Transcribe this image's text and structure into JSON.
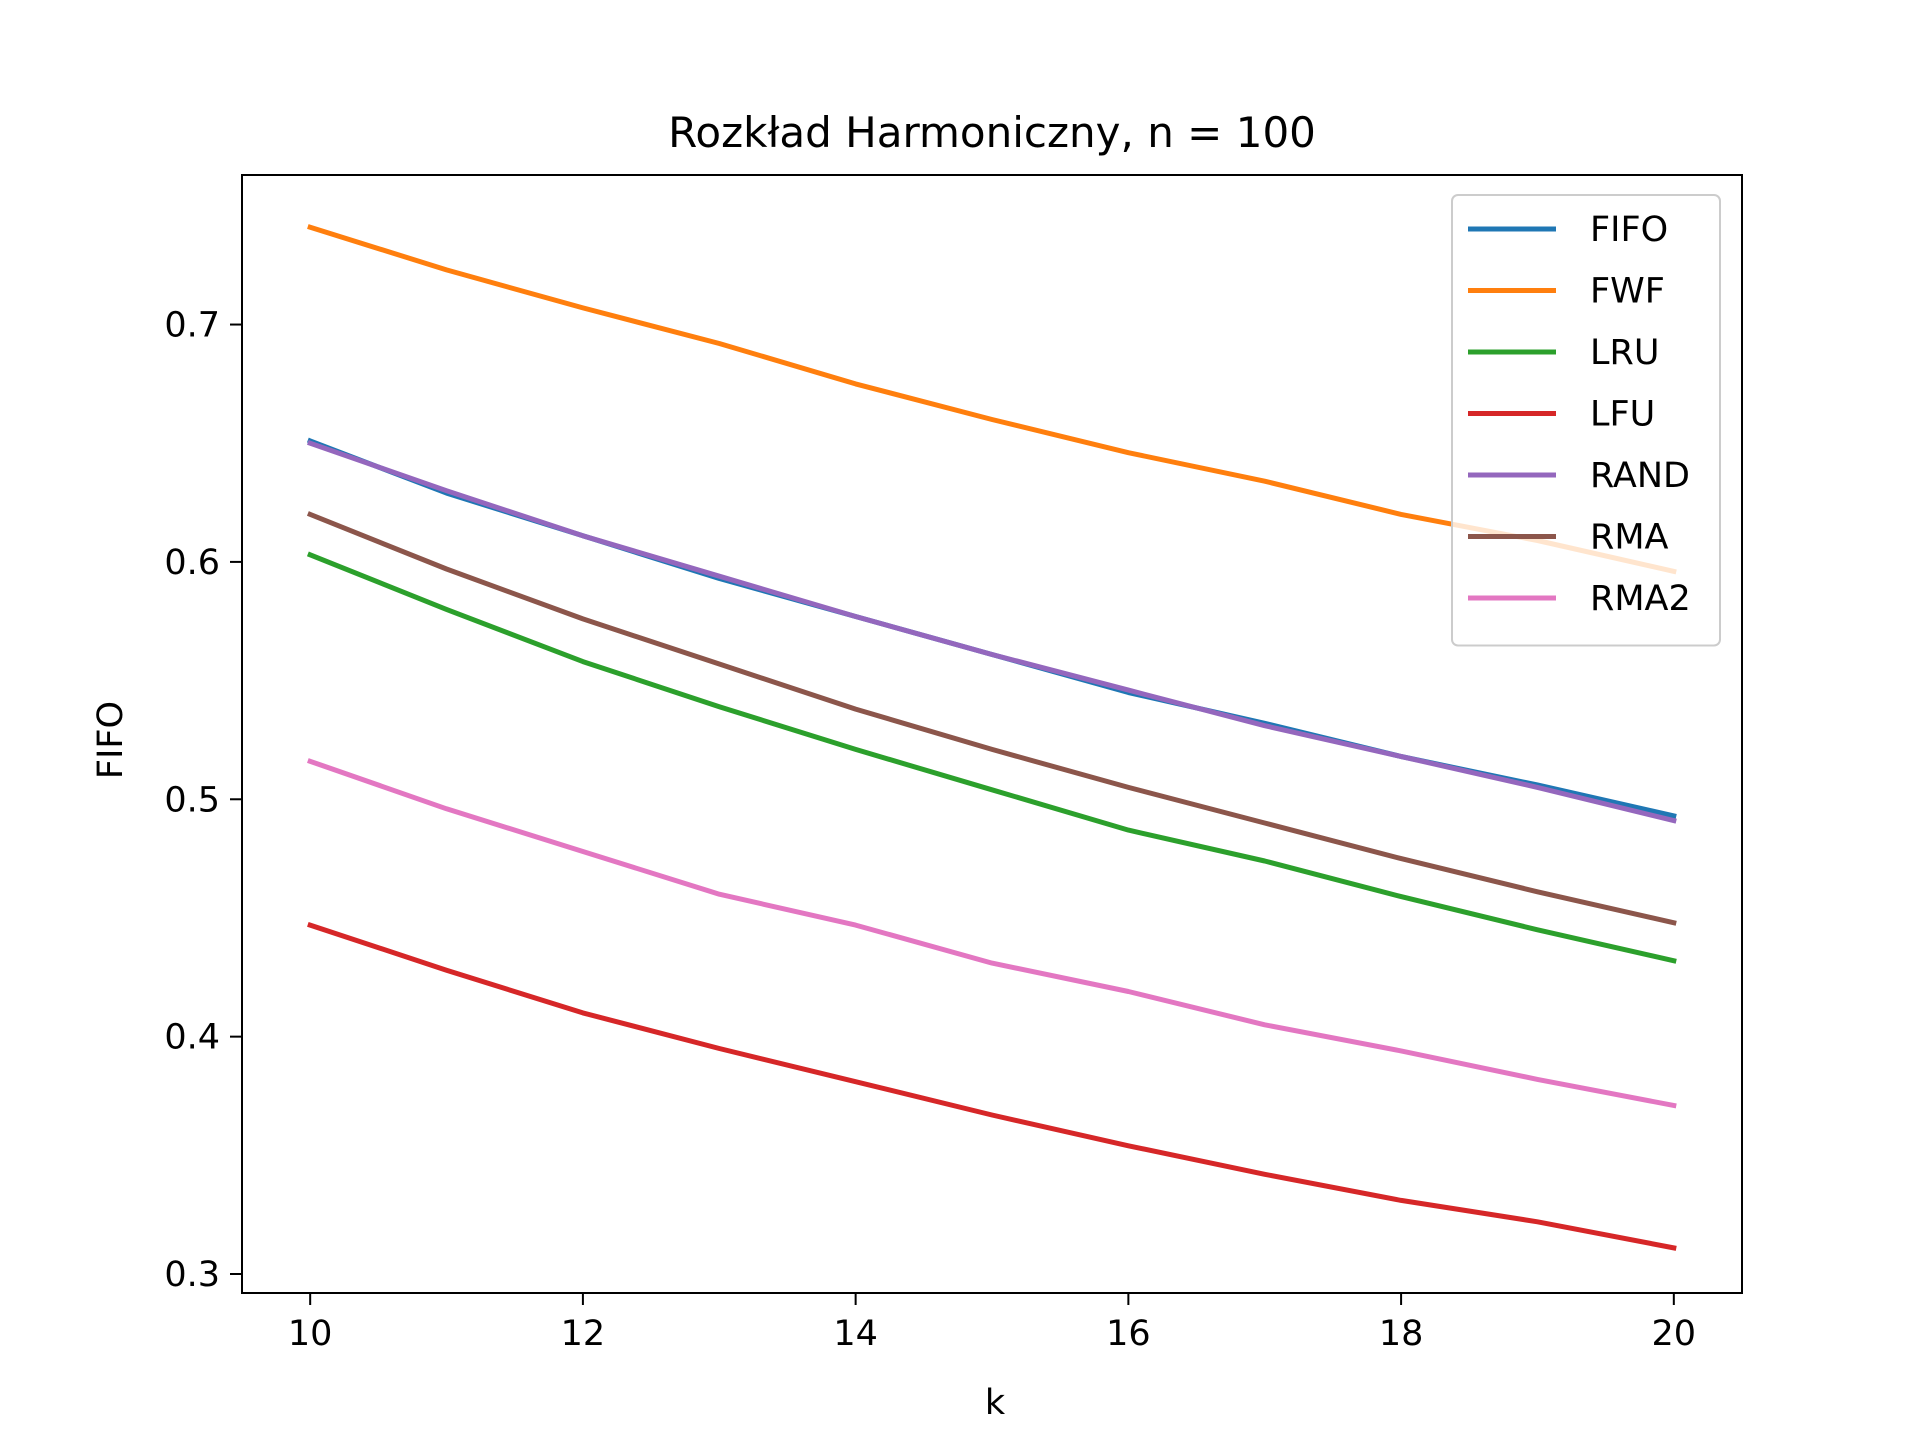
{
  "chart_data": {
    "type": "line",
    "title": "Rozkład Harmoniczny, n = 100",
    "xlabel": "k",
    "ylabel": "FIFO",
    "xlim": [
      9.5,
      20.5
    ],
    "ylim": [
      0.292,
      0.763
    ],
    "xticks": [
      10,
      12,
      14,
      16,
      18,
      20
    ],
    "xtick_labels": [
      "10",
      "12",
      "14",
      "16",
      "18",
      "20"
    ],
    "yticks": [
      0.3,
      0.4,
      0.5,
      0.6,
      0.7
    ],
    "ytick_labels": [
      "0.3",
      "0.4",
      "0.5",
      "0.6",
      "0.7"
    ],
    "grid": false,
    "legend_position": "top-right",
    "x": [
      10,
      11,
      12,
      13,
      14,
      15,
      16,
      17,
      18,
      19,
      20
    ],
    "series": [
      {
        "name": "FIFO",
        "color": "#1f77b4",
        "values": [
          0.651,
          0.629,
          0.611,
          0.593,
          0.577,
          0.561,
          0.545,
          0.532,
          0.518,
          0.506,
          0.493
        ]
      },
      {
        "name": "FWF",
        "color": "#ff7f0e",
        "values": [
          0.741,
          0.723,
          0.707,
          0.692,
          0.675,
          0.66,
          0.646,
          0.634,
          0.62,
          0.609,
          0.596
        ]
      },
      {
        "name": "LRU",
        "color": "#2ca02c",
        "values": [
          0.603,
          0.58,
          0.558,
          0.539,
          0.521,
          0.504,
          0.487,
          0.474,
          0.459,
          0.445,
          0.432
        ]
      },
      {
        "name": "LFU",
        "color": "#d62728",
        "values": [
          0.447,
          0.428,
          0.41,
          0.395,
          0.381,
          0.367,
          0.354,
          0.342,
          0.331,
          0.322,
          0.311
        ]
      },
      {
        "name": "RAND",
        "color": "#9467bd",
        "values": [
          0.65,
          0.63,
          0.611,
          0.594,
          0.577,
          0.561,
          0.546,
          0.531,
          0.518,
          0.505,
          0.491
        ]
      },
      {
        "name": "RMA",
        "color": "#8c564b",
        "values": [
          0.62,
          0.597,
          0.576,
          0.557,
          0.538,
          0.521,
          0.505,
          0.49,
          0.475,
          0.461,
          0.448
        ]
      },
      {
        "name": "RMA2",
        "color": "#e377c2",
        "values": [
          0.516,
          0.496,
          0.478,
          0.46,
          0.447,
          0.431,
          0.419,
          0.405,
          0.394,
          0.382,
          0.371
        ]
      }
    ]
  }
}
